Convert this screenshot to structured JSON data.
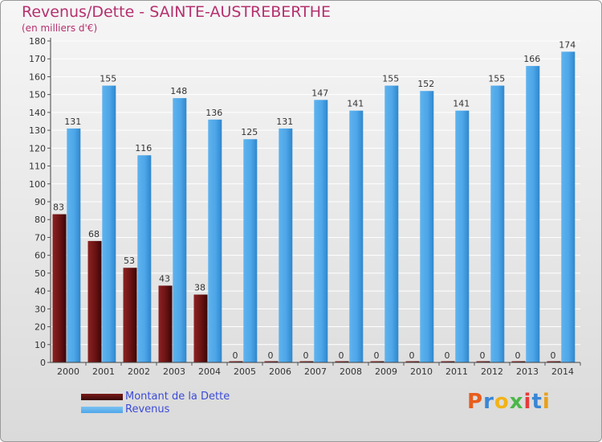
{
  "header": {
    "title": "Revenus/Dette - SAINTE-AUSTREBERTHE",
    "subtitle": "(en milliers d'€)"
  },
  "legend": {
    "items": [
      {
        "label": "Montant de la Dette",
        "color": "#7a1a1a"
      },
      {
        "label": "Revenus",
        "color": "#4da6e8"
      }
    ]
  },
  "logo": {
    "text": "Proxiti",
    "colors": [
      "#e85d1c",
      "#3a86d6",
      "#f2b318",
      "#4bb848",
      "#e63a3a",
      "#3a86d6",
      "#e8a01c"
    ]
  },
  "chart_data": {
    "type": "bar",
    "categories": [
      "2000",
      "2001",
      "2002",
      "2003",
      "2004",
      "2005",
      "2006",
      "2007",
      "2008",
      "2009",
      "2010",
      "2011",
      "2012",
      "2013",
      "2014"
    ],
    "series": [
      {
        "name": "Montant de la Dette",
        "color": "#7a1a1a",
        "values": [
          83,
          68,
          53,
          43,
          38,
          0,
          0,
          0,
          0,
          0,
          0,
          0,
          0,
          0,
          0
        ]
      },
      {
        "name": "Revenus",
        "color": "#4da6e8",
        "values": [
          131,
          155,
          116,
          148,
          136,
          125,
          131,
          147,
          141,
          155,
          152,
          141,
          155,
          166,
          174
        ]
      }
    ],
    "title": "Revenus/Dette - SAINTE-AUSTREBERTHE",
    "subtitle": "(en milliers d'€)",
    "xlabel": "",
    "ylabel": "",
    "ylim": [
      0,
      180
    ],
    "yticks": [
      0,
      10,
      20,
      30,
      40,
      50,
      60,
      70,
      80,
      90,
      100,
      110,
      120,
      130,
      140,
      150,
      160,
      170,
      180
    ],
    "grid": true,
    "legend_position": "bottom-left"
  }
}
